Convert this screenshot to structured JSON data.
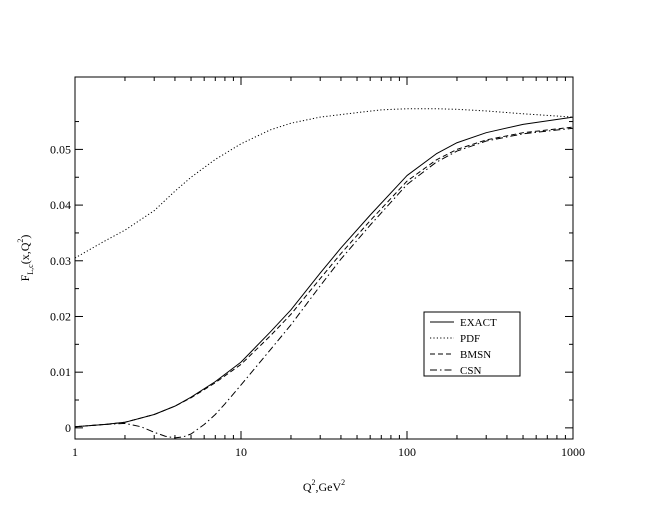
{
  "chart_data": {
    "type": "line",
    "xlabel": {
      "base": "Q",
      "sup": "2",
      "rest": ",GeV",
      "sup2": "2"
    },
    "ylabel": {
      "base": "F",
      "sub": "L,c",
      "rest": "(x,Q",
      "sup": "2",
      "end": ")"
    },
    "xscale": "log",
    "xlim": [
      1,
      1000
    ],
    "ylim": [
      -0.002,
      0.063
    ],
    "xticks": [
      1,
      10,
      100,
      1000
    ],
    "xtick_labels": [
      "1",
      "10",
      "100",
      "1000"
    ],
    "yticks": [
      0,
      0.01,
      0.02,
      0.03,
      0.04,
      0.05
    ],
    "ytick_labels": [
      "0",
      "0.01",
      "0.02",
      "0.03",
      "0.04",
      "0.05"
    ],
    "grid": false,
    "legend_position": "lower-right",
    "series": [
      {
        "name": "EXACT",
        "style": "solid",
        "x": [
          1,
          1.5,
          2,
          3,
          4,
          5,
          7,
          10,
          15,
          20,
          30,
          40,
          60,
          100,
          150,
          200,
          300,
          500,
          1000
        ],
        "y": [
          0.0002,
          0.0006,
          0.001,
          0.0024,
          0.0039,
          0.0055,
          0.0083,
          0.0118,
          0.0172,
          0.0212,
          0.0278,
          0.0323,
          0.0382,
          0.0453,
          0.0492,
          0.0512,
          0.053,
          0.0545,
          0.0558
        ]
      },
      {
        "name": "PDF",
        "style": "dotted",
        "x": [
          1,
          1.5,
          2,
          3,
          4,
          5,
          7,
          10,
          15,
          20,
          30,
          50,
          70,
          100,
          150,
          200,
          300,
          500,
          700,
          1000
        ],
        "y": [
          0.0305,
          0.0335,
          0.0355,
          0.039,
          0.0425,
          0.045,
          0.0482,
          0.051,
          0.0535,
          0.0547,
          0.0558,
          0.0566,
          0.0571,
          0.0573,
          0.0573,
          0.0572,
          0.0569,
          0.0564,
          0.0561,
          0.0558
        ]
      },
      {
        "name": "BMSN",
        "style": "dashed",
        "x": [
          1,
          1.5,
          2,
          3,
          4,
          5,
          7,
          10,
          15,
          20,
          30,
          40,
          60,
          100,
          150,
          200,
          300,
          500,
          1000
        ],
        "y": [
          0.0002,
          0.0006,
          0.001,
          0.0024,
          0.0039,
          0.0054,
          0.0081,
          0.0114,
          0.0165,
          0.0204,
          0.0268,
          0.0313,
          0.0372,
          0.0443,
          0.0481,
          0.05,
          0.0517,
          0.053,
          0.054
        ]
      },
      {
        "name": "CSN",
        "style": "dashdot",
        "x": [
          1,
          1.5,
          2,
          2.5,
          3,
          3.5,
          4,
          4.5,
          5,
          6,
          7,
          8,
          10,
          15,
          20,
          30,
          40,
          60,
          100,
          150,
          200,
          300,
          500,
          1000
        ],
        "y": [
          0.0002,
          0.0006,
          0.0008,
          0.0002,
          -0.0008,
          -0.0015,
          -0.0018,
          -0.0016,
          -0.0011,
          0.0006,
          0.0024,
          0.0043,
          0.0077,
          0.014,
          0.0185,
          0.0255,
          0.0303,
          0.0364,
          0.0437,
          0.0477,
          0.0497,
          0.0515,
          0.0528,
          0.0538
        ]
      }
    ]
  }
}
